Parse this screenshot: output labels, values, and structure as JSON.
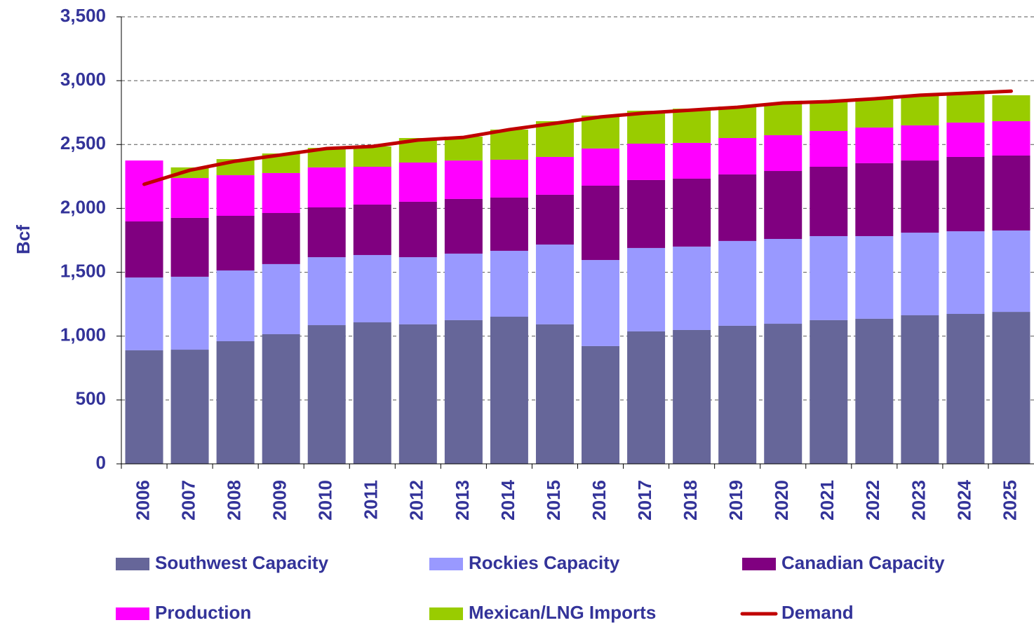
{
  "chart_data": {
    "type": "bar",
    "stacked": true,
    "y_label": "Bcf",
    "categories": [
      "2006",
      "2007",
      "2008",
      "2009",
      "2010",
      "2011",
      "2012",
      "2013",
      "2014",
      "2015",
      "2016",
      "2017",
      "2018",
      "2019",
      "2020",
      "2021",
      "2022",
      "2023",
      "2024",
      "2025"
    ],
    "series": [
      {
        "name": "Southwest Capacity",
        "color": "#666699",
        "values": [
          889,
          894,
          960,
          1015,
          1086,
          1108,
          1092,
          1125,
          1152,
          1092,
          922,
          1037,
          1048,
          1081,
          1097,
          1125,
          1136,
          1163,
          1174,
          1190
        ]
      },
      {
        "name": "Rockies Capacity",
        "color": "#9999ff",
        "values": [
          570,
          571,
          554,
          549,
          532,
          527,
          526,
          521,
          516,
          625,
          674,
          653,
          653,
          664,
          664,
          658,
          647,
          647,
          647,
          637
        ]
      },
      {
        "name": "Canadian Capacity",
        "color": "#800080",
        "values": [
          439,
          461,
          428,
          400,
          390,
          395,
          434,
          428,
          417,
          390,
          582,
          532,
          532,
          521,
          532,
          543,
          571,
          565,
          582,
          587
        ]
      },
      {
        "name": "Production",
        "color": "#ff00ff",
        "values": [
          477,
          312,
          318,
          313,
          313,
          296,
          307,
          301,
          296,
          296,
          291,
          285,
          280,
          285,
          280,
          280,
          279,
          275,
          269,
          269
        ]
      },
      {
        "name": "Mexican/LNG Imports",
        "color": "#99cc00",
        "values": [
          0,
          83,
          126,
          153,
          153,
          159,
          192,
          187,
          236,
          280,
          258,
          258,
          268,
          247,
          247,
          230,
          231,
          230,
          225,
          203
        ]
      },
      {
        "name": "Demand",
        "type": "line",
        "color": "#c00000",
        "values": [
          2189,
          2299,
          2370,
          2419,
          2469,
          2485,
          2535,
          2556,
          2617,
          2666,
          2716,
          2748,
          2770,
          2792,
          2825,
          2836,
          2858,
          2886,
          2902,
          2918
        ]
      }
    ],
    "ylim": [
      0,
      3500
    ],
    "yticks": [
      0,
      500,
      {
        "value": 1000,
        "label": "1,000"
      },
      {
        "value": 1500,
        "label": "1,500"
      },
      {
        "value": 2000,
        "label": "2,000"
      },
      {
        "value": 2500,
        "label": "2,500"
      },
      {
        "value": 3000,
        "label": "3,000"
      },
      {
        "value": 3500,
        "label": "3,500"
      }
    ],
    "grid": true,
    "legend": "bottom"
  }
}
